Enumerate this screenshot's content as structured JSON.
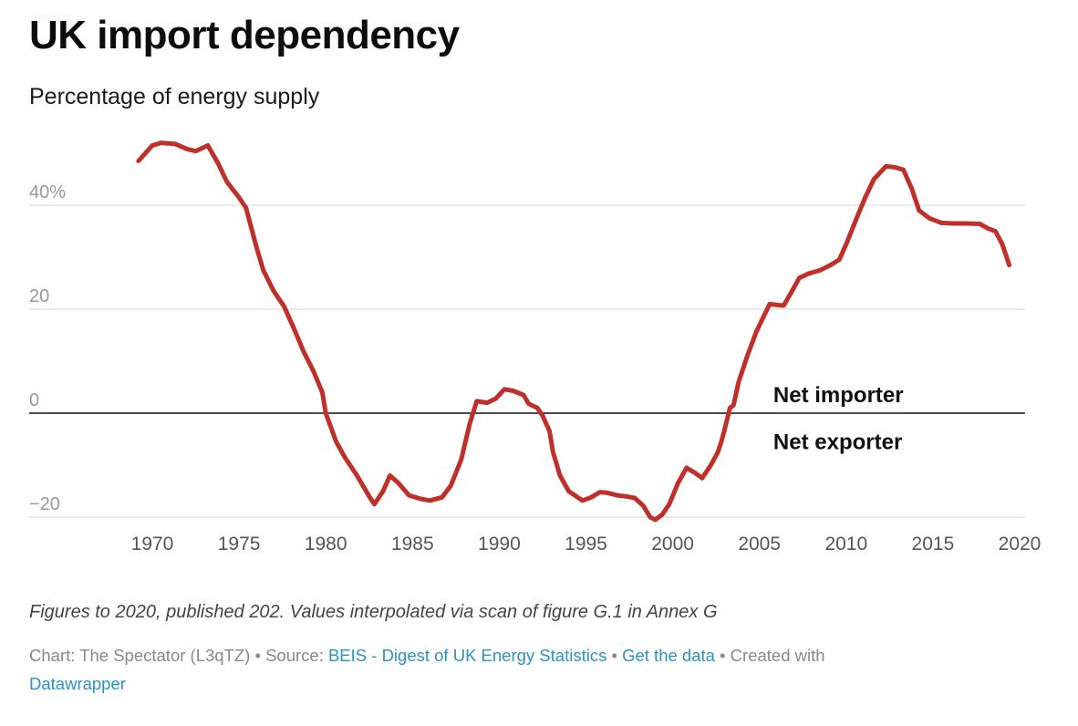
{
  "chart_data": {
    "type": "line",
    "title": "UK import dependency",
    "subtitle": "Percentage of energy supply",
    "xlabel": "",
    "ylabel": "",
    "xlim": [
      1966.5,
      2020.5
    ],
    "ylim": [
      -22,
      54
    ],
    "x_ticks": [
      1970,
      1975,
      1980,
      1985,
      1990,
      1995,
      2000,
      2005,
      2010,
      2015,
      2020
    ],
    "y_ticks": [
      {
        "value": 40,
        "label": "40%"
      },
      {
        "value": 20,
        "label": "20"
      },
      {
        "value": 0,
        "label": "0"
      },
      {
        "value": -20,
        "label": "−20"
      }
    ],
    "grid": "horizontal",
    "line_color": "#c0302b",
    "zero_line_color": "#111111",
    "annotations": [
      {
        "text": "Net importer",
        "x": 2005.8,
        "y": 3.5
      },
      {
        "text": "Net exporter",
        "x": 2005.8,
        "y": -5.5
      }
    ],
    "series": [
      {
        "values": [
          [
            1969.2,
            48.5
          ],
          [
            1970,
            51.5
          ],
          [
            1970.5,
            52
          ],
          [
            1971.3,
            51.8
          ],
          [
            1972,
            50.8
          ],
          [
            1972.5,
            50.4
          ],
          [
            1973.2,
            51.5
          ],
          [
            1973.8,
            48
          ],
          [
            1974.3,
            44.5
          ],
          [
            1975,
            41.5
          ],
          [
            1975.4,
            39.5
          ],
          [
            1976,
            32
          ],
          [
            1976.4,
            27.5
          ],
          [
            1977,
            23.5
          ],
          [
            1977.6,
            20.5
          ],
          [
            1978.2,
            16
          ],
          [
            1978.7,
            12
          ],
          [
            1979.3,
            8
          ],
          [
            1979.8,
            4
          ],
          [
            1980,
            0
          ],
          [
            1980.6,
            -5.5
          ],
          [
            1981.1,
            -8.5
          ],
          [
            1981.8,
            -12
          ],
          [
            1982.5,
            -16
          ],
          [
            1982.8,
            -17.5
          ],
          [
            1983.3,
            -15
          ],
          [
            1983.7,
            -12
          ],
          [
            1984.2,
            -13.5
          ],
          [
            1984.8,
            -15.8
          ],
          [
            1985.5,
            -16.5
          ],
          [
            1986,
            -16.8
          ],
          [
            1986.7,
            -16.2
          ],
          [
            1987.2,
            -14
          ],
          [
            1987.8,
            -9
          ],
          [
            1988.3,
            -2
          ],
          [
            1988.7,
            2.3
          ],
          [
            1989.3,
            2
          ],
          [
            1989.8,
            2.8
          ],
          [
            1990.3,
            4.6
          ],
          [
            1990.8,
            4.3
          ],
          [
            1991.4,
            3.5
          ],
          [
            1991.7,
            1.8
          ],
          [
            1992.2,
            1
          ],
          [
            1992.5,
            -0.5
          ],
          [
            1992.9,
            -3.5
          ],
          [
            1993.1,
            -7.5
          ],
          [
            1993.5,
            -12
          ],
          [
            1994,
            -15
          ],
          [
            1994.8,
            -16.8
          ],
          [
            1995.3,
            -16.2
          ],
          [
            1995.8,
            -15.2
          ],
          [
            1996.2,
            -15.3
          ],
          [
            1996.8,
            -15.8
          ],
          [
            1997.3,
            -16
          ],
          [
            1997.8,
            -16.3
          ],
          [
            1998.3,
            -17.8
          ],
          [
            1998.7,
            -20
          ],
          [
            1999,
            -20.5
          ],
          [
            1999.4,
            -19.5
          ],
          [
            1999.8,
            -17.5
          ],
          [
            2000.3,
            -13.5
          ],
          [
            2000.8,
            -10.5
          ],
          [
            2001.3,
            -11.5
          ],
          [
            2001.7,
            -12.5
          ],
          [
            2002.2,
            -10
          ],
          [
            2002.6,
            -7.5
          ],
          [
            2002.8,
            -5.5
          ],
          [
            2003,
            -3
          ],
          [
            2003.3,
            1
          ],
          [
            2003.5,
            1.5
          ],
          [
            2003.8,
            6
          ],
          [
            2004.3,
            11
          ],
          [
            2004.8,
            15.5
          ],
          [
            2005.3,
            19
          ],
          [
            2005.6,
            21
          ],
          [
            2006,
            20.8
          ],
          [
            2006.4,
            20.7
          ],
          [
            2006.8,
            23
          ],
          [
            2007.3,
            26
          ],
          [
            2007.8,
            26.8
          ],
          [
            2008.5,
            27.5
          ],
          [
            2009.1,
            28.5
          ],
          [
            2009.6,
            29.5
          ],
          [
            2010,
            32.5
          ],
          [
            2010.6,
            37.5
          ],
          [
            2011.1,
            41.5
          ],
          [
            2011.6,
            45
          ],
          [
            2012.3,
            47.5
          ],
          [
            2012.8,
            47.3
          ],
          [
            2013.3,
            46.8
          ],
          [
            2013.8,
            43
          ],
          [
            2014.2,
            39
          ],
          [
            2014.8,
            37.5
          ],
          [
            2015.5,
            36.6
          ],
          [
            2016.2,
            36.5
          ],
          [
            2017,
            36.5
          ],
          [
            2017.7,
            36.4
          ],
          [
            2018.2,
            35.5
          ],
          [
            2018.6,
            35
          ],
          [
            2019,
            32.5
          ],
          [
            2019.4,
            28.5
          ]
        ]
      }
    ]
  },
  "notes": "Figures to 2020, published 202. Values interpolated via scan of figure G.1 in Annex G",
  "footer": {
    "chart_credit": "Chart: The Spectator (L3qTZ) • Source: ",
    "source_link": "BEIS - Digest of UK Energy Statistics",
    "sep1": " • ",
    "data_link": "Get the data",
    "created_with": " • Created with ",
    "tool_link": "Datawrapper"
  }
}
